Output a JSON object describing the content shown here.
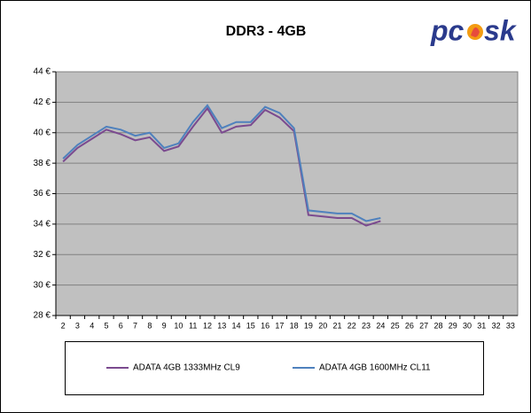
{
  "logo": [
    "pc",
    "sk"
  ],
  "chart_data": {
    "type": "line",
    "title": "DDR3 - 4GB",
    "categories": [
      2,
      3,
      4,
      5,
      6,
      7,
      8,
      9,
      10,
      11,
      12,
      13,
      14,
      15,
      16,
      17,
      18,
      19,
      20,
      21,
      22,
      23,
      24,
      25,
      26,
      27,
      28,
      29,
      30,
      31,
      32,
      33
    ],
    "series": [
      {
        "name": "ADATA 4GB 1333MHz CL9",
        "color": "#7b4a8f",
        "values": [
          38.1,
          39.0,
          39.6,
          40.2,
          39.9,
          39.5,
          39.7,
          38.8,
          39.1,
          40.4,
          41.6,
          40.0,
          40.4,
          40.5,
          41.5,
          41.0,
          40.1,
          34.6,
          34.5,
          34.4,
          34.4,
          33.9,
          34.2,
          null,
          null,
          null,
          null,
          null,
          null,
          null,
          null,
          null
        ]
      },
      {
        "name": "ADATA 4GB 1600MHz CL11",
        "color": "#4f81bd",
        "values": [
          38.3,
          39.2,
          39.8,
          40.4,
          40.2,
          39.8,
          40.0,
          39.0,
          39.3,
          40.7,
          41.8,
          40.3,
          40.7,
          40.7,
          41.7,
          41.3,
          40.3,
          34.9,
          34.8,
          34.7,
          34.7,
          34.2,
          34.4,
          null,
          null,
          null,
          null,
          null,
          null,
          null,
          null,
          null
        ]
      }
    ],
    "ylim": [
      28,
      44
    ],
    "yticks": [
      {
        "value": 28,
        "label": "28 €"
      },
      {
        "value": 30,
        "label": "30 €"
      },
      {
        "value": 32,
        "label": "32 €"
      },
      {
        "value": 34,
        "label": "34 €"
      },
      {
        "value": 36,
        "label": "36 €"
      },
      {
        "value": 38,
        "label": "38 €"
      },
      {
        "value": 40,
        "label": "40 €"
      },
      {
        "value": 42,
        "label": "42 €"
      },
      {
        "value": 44,
        "label": "44 €"
      }
    ],
    "grid": true,
    "legend": "bottom"
  }
}
